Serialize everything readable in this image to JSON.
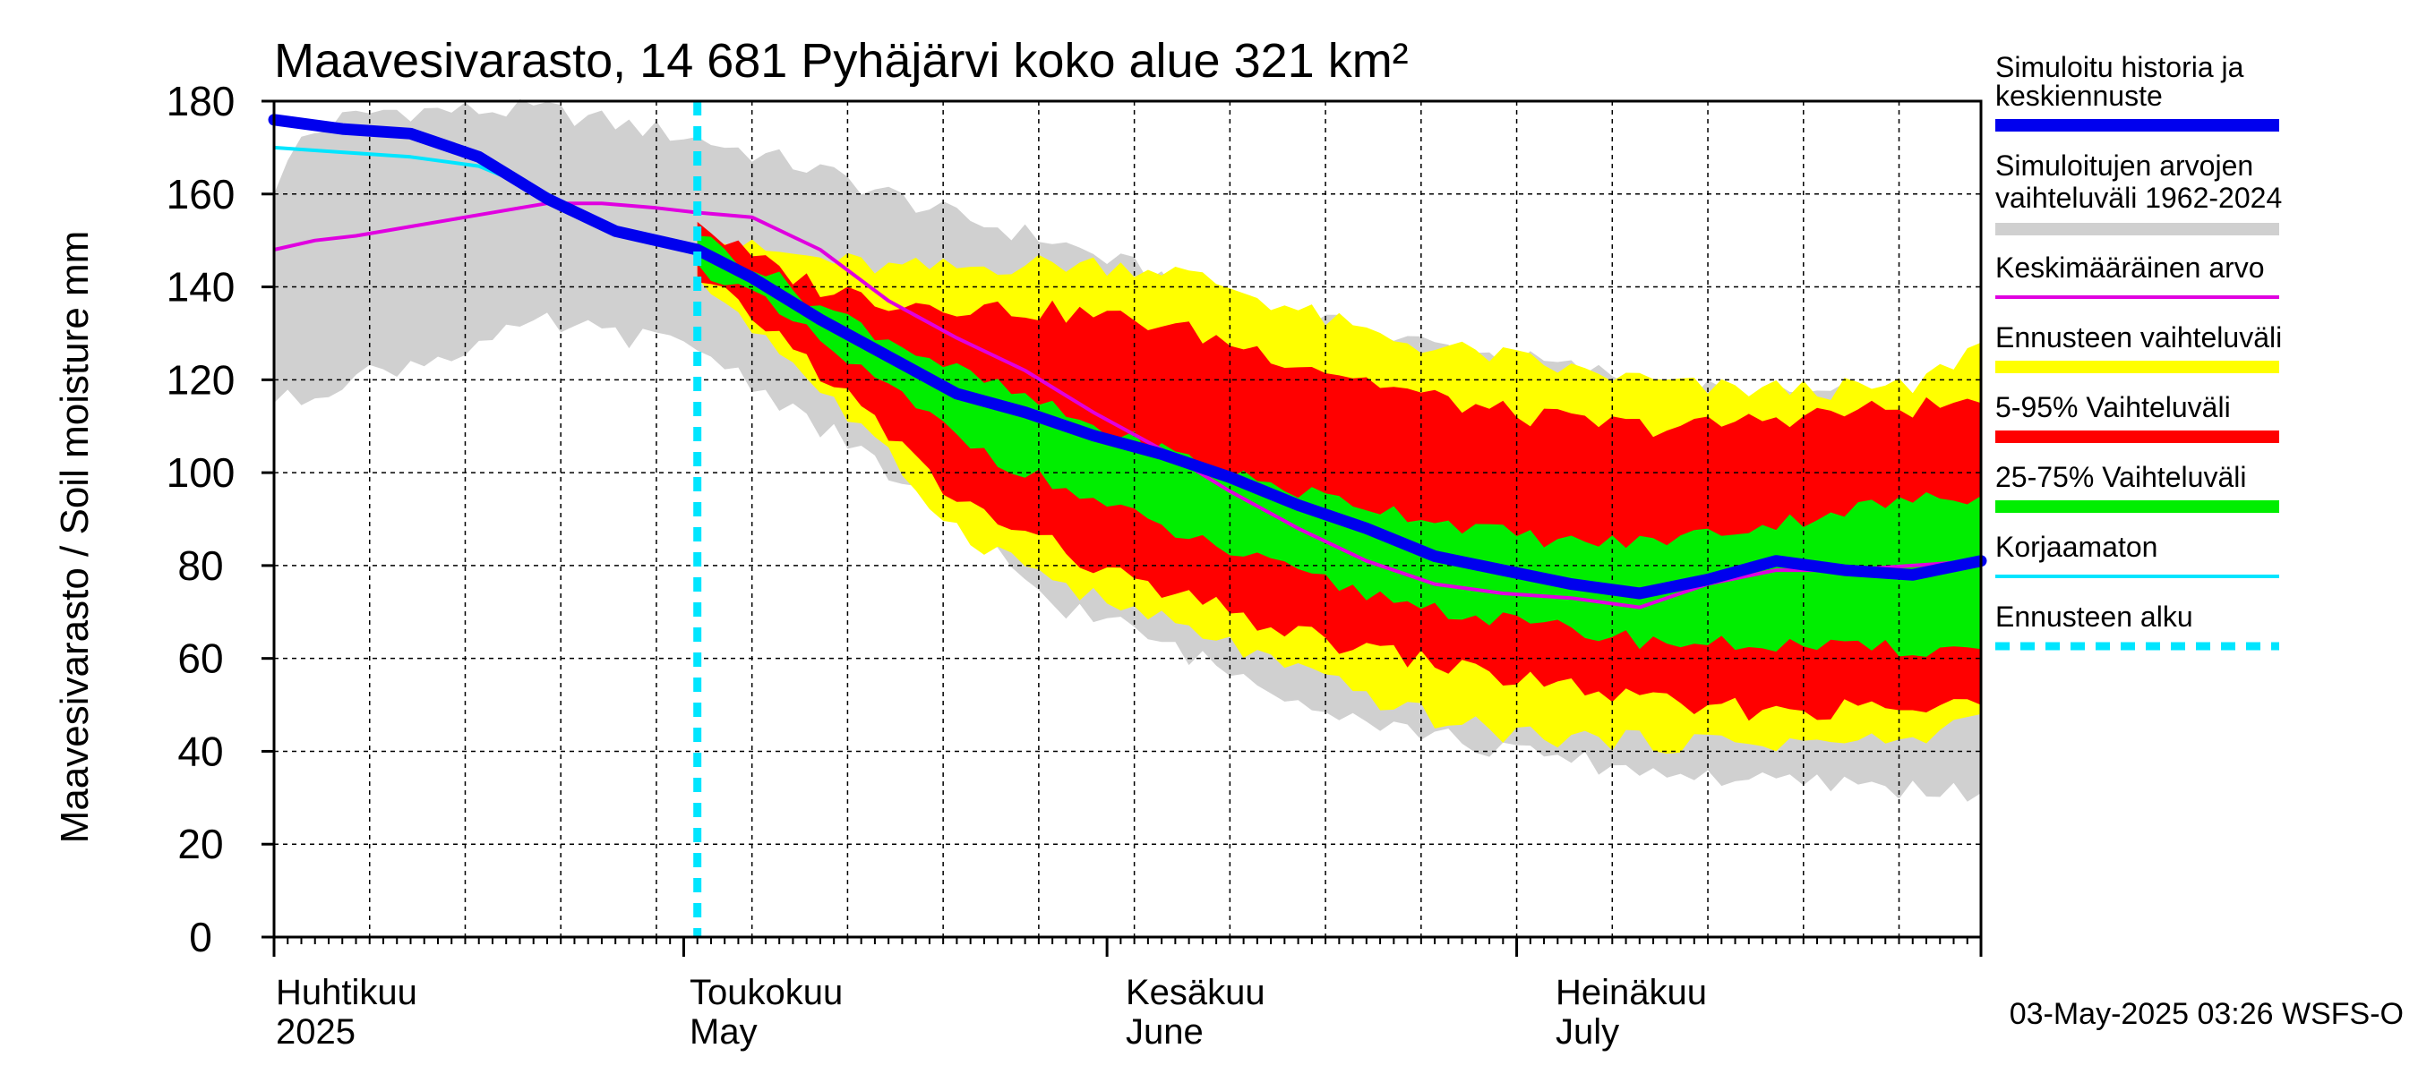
{
  "chart_data": {
    "type": "area",
    "title": "Maavesivarasto, 14 681 Pyhäjärvi koko alue 321 km²",
    "ylabel": "Maavesivarasto / Soil moisture   mm",
    "ylim": [
      0,
      180
    ],
    "yticks": [
      "0",
      "20",
      "40",
      "60",
      "80",
      "100",
      "120",
      "140",
      "160",
      "180"
    ],
    "x_days": 125,
    "months": [
      {
        "fi": "Huhtikuu",
        "en": "2025"
      },
      {
        "fi": "Toukokuu",
        "en": "May"
      },
      {
        "fi": "Kesäkuu",
        "en": "June"
      },
      {
        "fi": "Heinäkuu",
        "en": "July"
      }
    ],
    "forecast_start_day": 31,
    "footer": "03-May-2025 03:26 WSFS-O",
    "legend": [
      {
        "label1": "Simuloitu historia ja",
        "label2": "keskiennuste",
        "color": "#0000ee",
        "style": "thick"
      },
      {
        "label1": "Simuloitujen arvojen",
        "label2": "vaihteluväli 1962-2024",
        "color": "#d0d0d0",
        "style": "band"
      },
      {
        "label1": "Keskimääräinen arvo",
        "label2": "",
        "color": "#e000e0",
        "style": "thin"
      },
      {
        "label1": "Ennusteen vaihteluväli",
        "label2": "",
        "color": "#ffff00",
        "style": "band"
      },
      {
        "label1": "5-95% Vaihteluväli",
        "label2": "",
        "color": "#ff0000",
        "style": "band"
      },
      {
        "label1": "25-75% Vaihteluväli",
        "label2": "",
        "color": "#00ee00",
        "style": "band"
      },
      {
        "label1": "Korjaamaton",
        "label2": "",
        "color": "#00e5ff",
        "style": "thin"
      },
      {
        "label1": "Ennusteen alku",
        "label2": "",
        "color": "#00e5ff",
        "style": "dashed"
      }
    ],
    "series": {
      "hist_range": {
        "x": [
          0,
          2,
          5,
          8,
          12,
          20,
          31,
          40,
          50,
          57,
          62,
          70,
          80,
          90,
          100,
          104,
          110,
          115,
          120,
          125
        ],
        "upper": [
          160,
          172,
          176,
          178,
          178,
          178,
          172,
          165,
          155,
          150,
          145,
          138,
          130,
          125,
          120,
          118,
          117,
          117,
          117,
          117
        ],
        "lower": [
          115,
          116,
          120,
          122,
          125,
          132,
          127,
          110,
          90,
          72,
          67,
          57,
          47,
          40,
          36,
          35,
          33,
          33,
          32,
          31
        ]
      },
      "forecast_range": {
        "x": [
          31,
          35,
          40,
          45,
          50,
          55,
          60,
          65,
          70,
          75,
          80,
          85,
          90,
          95,
          100,
          105,
          110,
          115,
          120,
          125
        ],
        "upper": [
          152,
          148,
          146,
          144,
          144,
          145,
          145,
          144,
          140,
          135,
          130,
          127,
          125,
          122,
          120,
          118,
          118,
          118,
          118,
          128
        ],
        "lower": [
          142,
          132,
          118,
          103,
          88,
          80,
          73,
          68,
          63,
          57,
          52,
          47,
          44,
          43,
          42,
          42,
          42,
          42,
          42,
          48
        ]
      },
      "p5_95": {
        "x": [
          31,
          35,
          40,
          45,
          50,
          55,
          60,
          65,
          70,
          75,
          80,
          85,
          90,
          95,
          100,
          105,
          110,
          115,
          120,
          125
        ],
        "upper": [
          154,
          146,
          140,
          137,
          136,
          135,
          134,
          132,
          128,
          124,
          120,
          116,
          113,
          111,
          110,
          110,
          112,
          113,
          114,
          115
        ],
        "lower": [
          141,
          134,
          122,
          108,
          94,
          87,
          80,
          74,
          70,
          65,
          62,
          59,
          56,
          54,
          51,
          49,
          49,
          49,
          49,
          50
        ]
      },
      "p25_75": {
        "x": [
          31,
          35,
          40,
          45,
          50,
          55,
          60,
          65,
          70,
          75,
          80,
          85,
          90,
          95,
          100,
          105,
          110,
          115,
          120,
          125
        ],
        "upper": [
          151,
          145,
          136,
          129,
          122,
          116,
          110,
          105,
          100,
          96,
          93,
          90,
          87,
          85,
          85,
          87,
          89,
          92,
          94,
          95
        ],
        "lower": [
          145,
          138,
          128,
          118,
          108,
          100,
          94,
          88,
          83,
          78,
          74,
          71,
          68,
          66,
          64,
          63,
          63,
          62,
          62,
          62
        ]
      },
      "simulated": {
        "x": [
          0,
          5,
          10,
          15,
          20,
          25,
          31,
          35,
          40,
          45,
          50,
          55,
          60,
          65,
          70,
          75,
          80,
          85,
          90,
          95,
          100,
          105,
          110,
          115,
          120,
          125
        ],
        "y": [
          176,
          174,
          173,
          168,
          159,
          152,
          148,
          142,
          133,
          125,
          117,
          113,
          108,
          104,
          99,
          93,
          88,
          82,
          79,
          76,
          74,
          77,
          81,
          79,
          78,
          81
        ]
      },
      "uncorrected": {
        "x": [
          0,
          5,
          10,
          15,
          20,
          25,
          31
        ],
        "y": [
          170,
          169,
          168,
          166,
          160,
          152,
          148
        ]
      },
      "mean": {
        "x": [
          0,
          3,
          6,
          10,
          14,
          18,
          20,
          24,
          28,
          31,
          35,
          40,
          45,
          50,
          55,
          60,
          65,
          70,
          75,
          80,
          85,
          90,
          95,
          100,
          105,
          110,
          115,
          120,
          125
        ],
        "y": [
          148,
          150,
          151,
          153,
          155,
          157,
          158,
          158,
          157,
          156,
          155,
          148,
          137,
          129,
          122,
          113,
          105,
          96,
          88,
          81,
          76,
          74,
          73,
          71,
          76,
          79,
          79,
          80,
          81
        ]
      }
    }
  }
}
